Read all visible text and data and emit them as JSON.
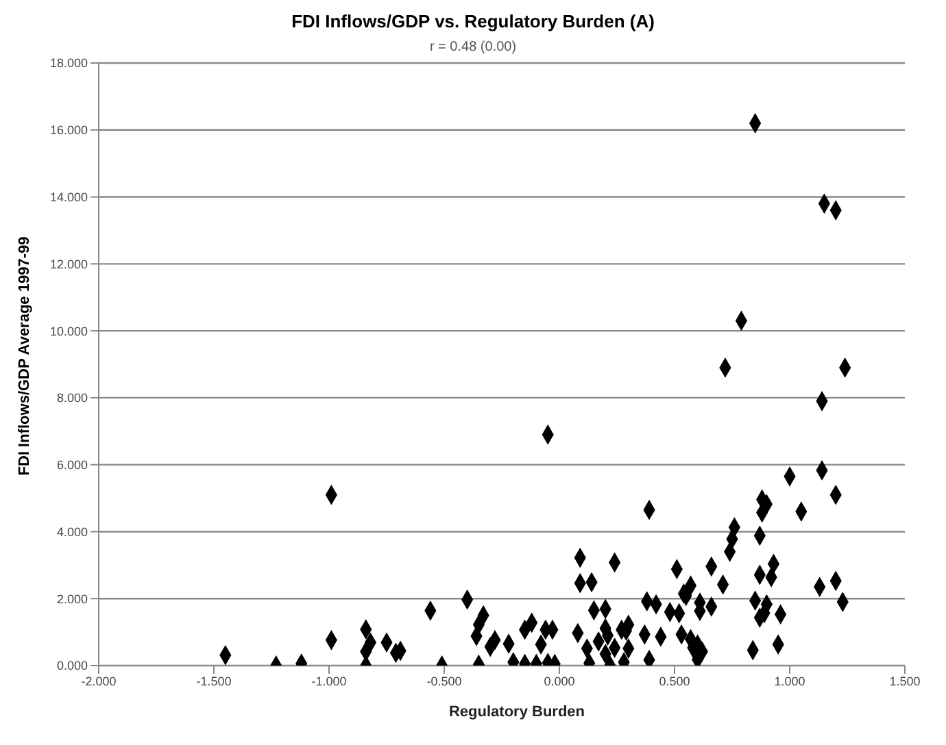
{
  "chart_data": {
    "type": "scatter",
    "title": "FDI Inflows/GDP vs. Regulatory Burden (A)",
    "subtitle": "r = 0.48 (0.00)",
    "xlabel": "Regulatory Burden",
    "ylabel": "FDI Inflows/GDP Average 1997-99",
    "xlim": [
      -2,
      1.5
    ],
    "xticks": [
      {
        "value": -2,
        "label": "-2.000"
      },
      {
        "value": -1.5,
        "label": "-1.500"
      },
      {
        "value": -1,
        "label": "-1.000"
      },
      {
        "value": -0.5,
        "label": "-0.500"
      },
      {
        "value": 0,
        "label": "0.000"
      },
      {
        "value": 0.5,
        "label": "0.500"
      },
      {
        "value": 1,
        "label": "1.000"
      },
      {
        "value": 1.5,
        "label": "1.500"
      }
    ],
    "ylim": [
      0,
      18
    ],
    "yticks": [
      {
        "value": 0,
        "label": "0.000"
      },
      {
        "value": 2,
        "label": "2.000"
      },
      {
        "value": 4,
        "label": "4.000"
      },
      {
        "value": 6,
        "label": "6.000"
      },
      {
        "value": 8,
        "label": "8.000"
      },
      {
        "value": 10,
        "label": "10.000"
      },
      {
        "value": 12,
        "label": "12.000"
      },
      {
        "value": 14,
        "label": "14.000"
      },
      {
        "value": 16,
        "label": "16.000"
      },
      {
        "value": 18,
        "label": "18.000"
      }
    ],
    "grid": "y",
    "marker": "diamond",
    "series": [
      {
        "color": "#000000",
        "x": [
          0.85,
          1.15,
          1.2,
          0.79,
          0.72,
          1.24,
          1.14,
          -0.05,
          1.0,
          1.14,
          1.2,
          1.05,
          0.88,
          0.9,
          0.88,
          0.39,
          0.76,
          0.75,
          0.74,
          0.87,
          0.09,
          0.24,
          0.51,
          0.66,
          0.93,
          0.87,
          0.92,
          0.09,
          0.14,
          0.71,
          0.57,
          1.13,
          1.2,
          1.23,
          0.54,
          0.55,
          0.38,
          0.42,
          0.61,
          0.61,
          0.66,
          0.48,
          0.52,
          0.85,
          0.9,
          0.89,
          0.87,
          0.96,
          0.15,
          0.2,
          -0.12,
          -0.15,
          -0.06,
          -0.03,
          -0.08,
          0.2,
          0.21,
          0.17,
          0.27,
          0.3,
          0.29,
          0.08,
          0.12,
          0.2,
          0.24,
          0.3,
          0.37,
          0.44,
          0.53,
          0.57,
          0.58,
          0.6,
          0.62,
          0.6,
          0.84,
          0.95,
          0.13,
          0.22,
          0.28,
          0.39,
          -0.22,
          -0.2,
          -0.15,
          -0.1,
          -0.05,
          -0.02,
          -0.99,
          -1.45,
          -1.23,
          -1.12,
          -0.99,
          -0.84,
          -0.82,
          -0.84,
          -0.84,
          -0.75,
          -0.71,
          -0.69,
          -0.56,
          -0.51,
          -0.4,
          -0.33,
          -0.35,
          -0.36,
          -0.35,
          -0.3,
          -0.28
        ],
        "values": [
          16.2,
          13.8,
          13.6,
          10.3,
          8.9,
          8.9,
          7.9,
          6.9,
          5.65,
          5.83,
          5.1,
          4.6,
          4.96,
          4.82,
          4.57,
          4.65,
          4.13,
          3.78,
          3.4,
          3.88,
          3.22,
          3.08,
          2.88,
          2.96,
          3.04,
          2.71,
          2.64,
          2.46,
          2.49,
          2.42,
          2.39,
          2.35,
          2.53,
          1.9,
          2.15,
          2.08,
          1.92,
          1.83,
          1.88,
          1.63,
          1.76,
          1.6,
          1.56,
          1.94,
          1.83,
          1.57,
          1.43,
          1.53,
          1.65,
          1.69,
          1.28,
          1.07,
          1.07,
          1.07,
          0.63,
          1.11,
          0.9,
          0.72,
          1.07,
          1.22,
          1.04,
          0.97,
          0.51,
          0.35,
          0.53,
          0.51,
          0.93,
          0.86,
          0.93,
          0.79,
          0.53,
          0.63,
          0.42,
          0.18,
          0.46,
          0.63,
          0.07,
          0,
          0.1,
          0.17,
          0.65,
          0.1,
          0.05,
          0.05,
          0.08,
          0.05,
          5.1,
          0.31,
          0,
          0.06,
          0.76,
          1.08,
          0.69,
          0.42,
          0,
          0.69,
          0.38,
          0.44,
          1.64,
          0,
          1.97,
          1.5,
          1.22,
          0.88,
          0.03,
          0.56,
          0.76
        ]
      }
    ]
  }
}
